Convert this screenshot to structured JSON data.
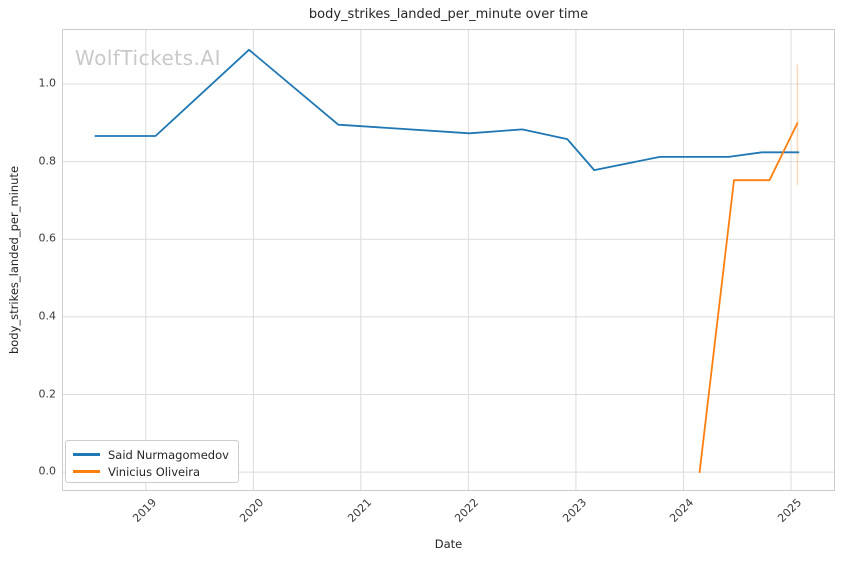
{
  "watermark": "WolfTickets.AI",
  "chart_data": {
    "type": "line",
    "title": "body_strikes_landed_per_minute over time",
    "xlabel": "Date",
    "ylabel": "body_strikes_landed_per_minute",
    "xlim": [
      2018.23,
      2025.4
    ],
    "ylim": [
      -0.046,
      1.139
    ],
    "grid": true,
    "legend_position": "lower left",
    "x_ticks": [
      2019,
      2020,
      2021,
      2022,
      2023,
      2024,
      2025
    ],
    "x_tick_labels": [
      "2019",
      "2020",
      "2021",
      "2022",
      "2023",
      "2024",
      "2025"
    ],
    "y_ticks": [
      0.0,
      0.2,
      0.4,
      0.6,
      0.8,
      1.0
    ],
    "y_tick_labels": [
      "0.0",
      "0.2",
      "0.4",
      "0.6",
      "0.8",
      "1.0"
    ],
    "series": [
      {
        "name": "Said Nurmagomedov",
        "color": "#1f77b4",
        "x": [
          2018.53,
          2019.09,
          2019.96,
          2020.79,
          2022.01,
          2022.5,
          2022.92,
          2023.17,
          2023.78,
          2024.42,
          2024.73,
          2025.07
        ],
        "y": [
          0.866,
          0.866,
          1.088,
          0.895,
          0.873,
          0.883,
          0.858,
          0.778,
          0.812,
          0.812,
          0.824,
          0.824
        ]
      },
      {
        "name": "Vinicius Oliveira",
        "color": "#ff7f0e",
        "x": [
          2024.15,
          2024.47,
          2024.8,
          2025.06
        ],
        "y": [
          0.0,
          0.752,
          0.752,
          0.899
        ]
      }
    ],
    "error_bars": [
      {
        "series": "Vinicius Oliveira",
        "x": 2025.06,
        "y_low": 0.74,
        "y_high": 1.05,
        "color": "#ff7f0e",
        "opacity": 0.3
      }
    ]
  },
  "legend": {
    "items": [
      {
        "label": "Said Nurmagomedov",
        "color": "#1f77b4"
      },
      {
        "label": "Vinicius Oliveira",
        "color": "#ff7f0e"
      }
    ]
  },
  "style": {
    "grid_color": "#dcdcdc",
    "spine_color": "#cccccc",
    "line_width": 1.8
  }
}
